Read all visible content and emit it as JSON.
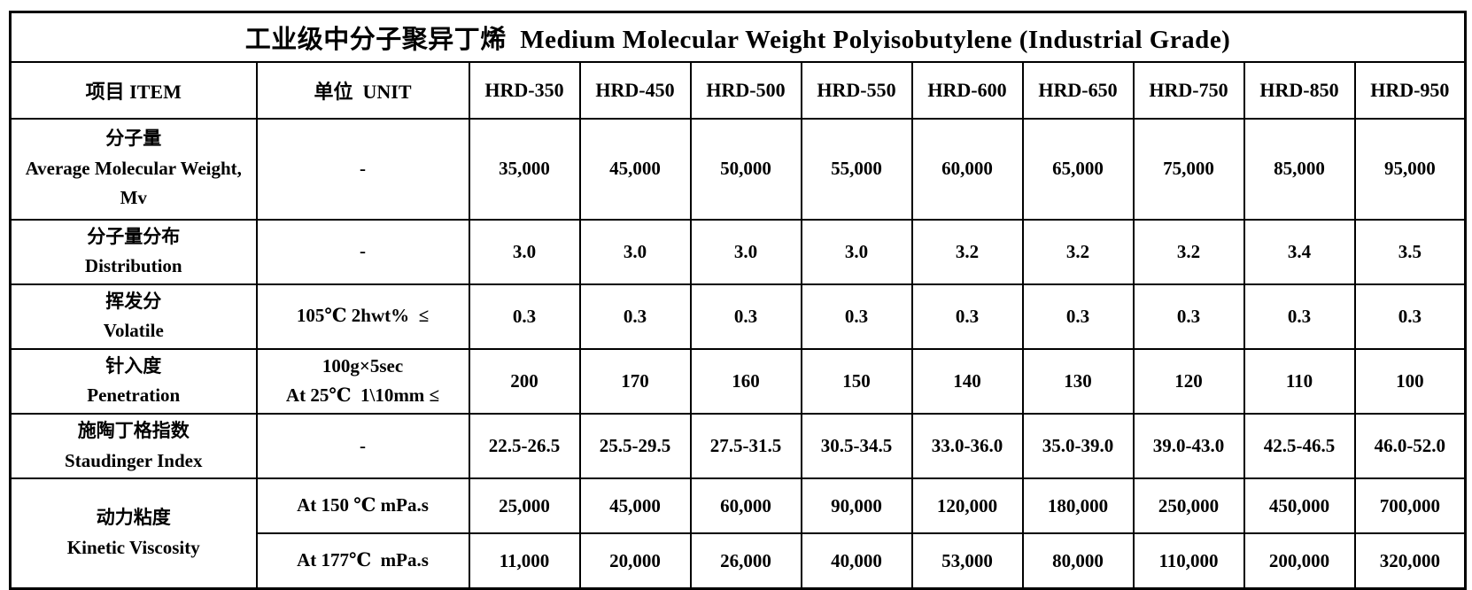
{
  "title": "工业级中分子聚异丁烯  Medium Molecular Weight Polyisobutylene (Industrial Grade)",
  "table": {
    "columns": {
      "item_header": "项目 ITEM",
      "unit_header": "单位  UNIT",
      "grade_headers": [
        "HRD-350",
        "HRD-450",
        "HRD-500",
        "HRD-550",
        "HRD-600",
        "HRD-650",
        "HRD-750",
        "HRD-850",
        "HRD-950"
      ]
    },
    "rows": [
      {
        "id": "average-molecular-weight",
        "item_lines": [
          "分子量",
          "Average Molecular Weight,",
          "Mv"
        ],
        "unit_lines": [
          "-"
        ],
        "values": [
          "35,000",
          "45,000",
          "50,000",
          "55,000",
          "60,000",
          "65,000",
          "75,000",
          "85,000",
          "95,000"
        ]
      },
      {
        "id": "distribution",
        "item_lines": [
          "分子量分布",
          "Distribution"
        ],
        "unit_lines": [
          "-"
        ],
        "values": [
          "3.0",
          "3.0",
          "3.0",
          "3.0",
          "3.2",
          "3.2",
          "3.2",
          "3.4",
          "3.5"
        ]
      },
      {
        "id": "volatile",
        "item_lines": [
          "挥发分",
          "Volatile"
        ],
        "unit_lines": [
          "105℃ 2hwt%  ≤"
        ],
        "values": [
          "0.3",
          "0.3",
          "0.3",
          "0.3",
          "0.3",
          "0.3",
          "0.3",
          "0.3",
          "0.3"
        ]
      },
      {
        "id": "penetration",
        "item_lines": [
          "针入度",
          "Penetration"
        ],
        "unit_lines": [
          "100g×5sec",
          "At 25℃  1\\10mm ≤"
        ],
        "values": [
          "200",
          "170",
          "160",
          "150",
          "140",
          "130",
          "120",
          "110",
          "100"
        ]
      },
      {
        "id": "staudinger-index",
        "item_lines": [
          "施陶丁格指数",
          "Staudinger Index"
        ],
        "unit_lines": [
          "-"
        ],
        "values": [
          "22.5-26.5",
          "25.5-29.5",
          "27.5-31.5",
          "30.5-34.5",
          "33.0-36.0",
          "35.0-39.0",
          "39.0-43.0",
          "42.5-46.5",
          "46.0-52.0"
        ]
      },
      {
        "id": "kinetic-viscosity-150c",
        "item_lines": [
          "动力粘度",
          "Kinetic Viscosity"
        ],
        "item_rowspan": 2,
        "unit_lines": [
          "At 150 ℃ mPa.s"
        ],
        "values": [
          "25,000",
          "45,000",
          "60,000",
          "90,000",
          "120,000",
          "180,000",
          "250,000",
          "450,000",
          "700,000"
        ]
      },
      {
        "id": "kinetic-viscosity-177c",
        "item_lines": null,
        "unit_lines": [
          "At 177℃  mPa.s"
        ],
        "values": [
          "11,000",
          "20,000",
          "26,000",
          "40,000",
          "53,000",
          "80,000",
          "110,000",
          "200,000",
          "320,000"
        ]
      }
    ]
  }
}
